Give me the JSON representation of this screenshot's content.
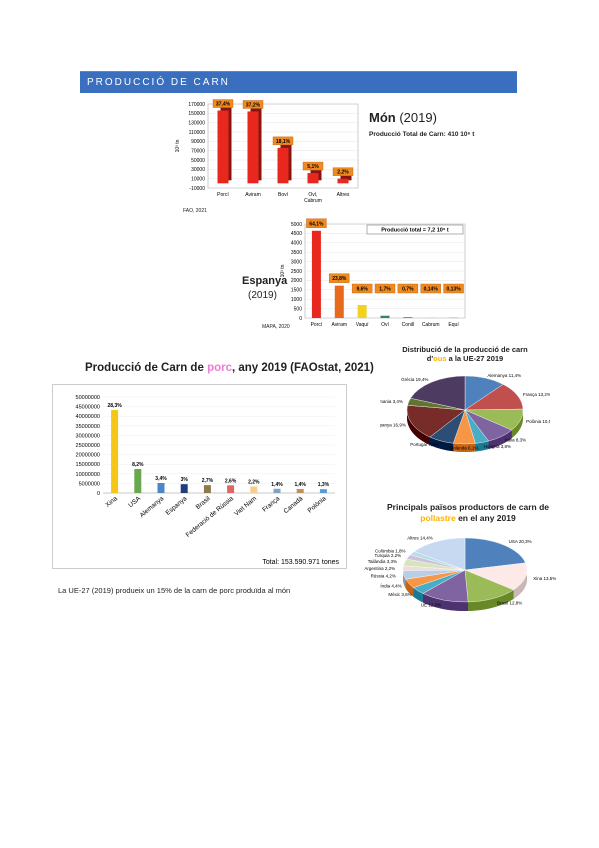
{
  "header": {
    "title": "PRODUCCIÓ DE CARN"
  },
  "world": {
    "title": "Món",
    "year": "(2019)",
    "total": "Producció Total de Carn: 410 10⁶ t",
    "source": "FAO, 2021",
    "ylabel": "10³ tn",
    "color": "#e8281e",
    "chart_data": {
      "type": "bar",
      "categories": [
        "Porcí",
        "Aviram",
        "Boví",
        "Oví, Cabrum",
        "Altres"
      ],
      "values": [
        156000,
        154000,
        76000,
        22000,
        10000
      ],
      "labels": [
        "37,4%",
        "37,2%",
        "18,1%",
        "5,1%",
        "2,2%"
      ],
      "ylim": [
        -10000,
        170000
      ],
      "yticks": [
        "170000",
        "150000",
        "130000",
        "110000",
        "90000",
        "70000",
        "50000",
        "30000",
        "10000",
        "-10000"
      ]
    }
  },
  "spain": {
    "title": "Espanya",
    "year": "(2019)",
    "total": "Producció total = 7,2 10⁶ t",
    "source": "MAPA, 2020",
    "ylabel": "10³ tn",
    "chart_data": {
      "type": "bar",
      "categories": [
        "Porcí",
        "Aviram",
        "Vaquí",
        "Oví",
        "Conill",
        "Cabrum",
        "Equí"
      ],
      "values": [
        4640,
        1720,
        690,
        120,
        50,
        10,
        10
      ],
      "labels": [
        "64,1%",
        "23,8%",
        "9,6%",
        "1,7%",
        "0,7%",
        "0,14%",
        "0,13%"
      ],
      "colors": [
        "#e8281e",
        "#e86a1e",
        "#f2d21e",
        "#2e8b57",
        "#4aa3a0",
        "#8fb0c0",
        "#3a6ab0"
      ],
      "ylim": [
        0,
        5000
      ],
      "yticks": [
        "5000",
        "4500",
        "4000",
        "3500",
        "3000",
        "2500",
        "2000",
        "1500",
        "1000",
        "500",
        "0"
      ]
    }
  },
  "pork": {
    "title_prefix": "Producció de Carn de ",
    "title_highlight": "porc",
    "title_suffix": ", any 2019 (FAOstat, 2021)",
    "total": "Total: 153.590.971 tones",
    "note": "La UE-27 (2019) produeix un 15% de la carn de porc produïda al món",
    "chart_data": {
      "type": "bar",
      "categories": [
        "Xina",
        "USA",
        "Alemanya",
        "Espanya",
        "Brasil",
        "Federació de Rússia",
        "Viet Nam",
        "França",
        "Canadà",
        "Polònia"
      ],
      "values": [
        43200000,
        12500000,
        5200000,
        4600000,
        4100000,
        4000000,
        3400000,
        2200000,
        2100000,
        2000000
      ],
      "labels": [
        "28,3%",
        "8,2%",
        "3,4%",
        "3%",
        "2,7%",
        "2,6%",
        "2,2%",
        "1,4%",
        "1,4%",
        "1,3%"
      ],
      "colors": [
        "#f5c518",
        "#6aa84f",
        "#4a86c8",
        "#1f3f7a",
        "#8c7b4a",
        "#e06666",
        "#f6cf8a",
        "#7fa3c8",
        "#c09060",
        "#5b9bd5"
      ],
      "ylim": [
        0,
        50000000
      ],
      "yticks": [
        "50000000",
        "45000000",
        "40000000",
        "35000000",
        "30000000",
        "25000000",
        "20000000",
        "15000000",
        "10000000",
        "5000000",
        "0"
      ]
    }
  },
  "eggs": {
    "title1": "Distribució de la producció de carn",
    "title2_prefix": "d'",
    "title2_highlight": "ous",
    "title2_suffix": " a la UE-27 2019",
    "chart_data": {
      "type": "pie",
      "labels": [
        "Alemanya 11,4%",
        "França 13,2%",
        "Polònia 10,5%",
        "Itàlia 8,3%",
        "Hongria 3,8%",
        "Holanda 6,1%",
        "Portugal 7,1%",
        "Espanya 16,9%",
        "Romania 3,4%",
        "Grècia 19,4%"
      ],
      "values": [
        11.4,
        13.2,
        10.5,
        8.3,
        3.8,
        6.1,
        7.1,
        16.9,
        3.4,
        19.4
      ],
      "colors": [
        "#4f81bd",
        "#c0504d",
        "#9bbb59",
        "#8064a2",
        "#4bacc6",
        "#f79646",
        "#2c4d75",
        "#772c2a",
        "#5f7530",
        "#4d3b62"
      ]
    }
  },
  "poultry": {
    "title1": "Principals països productors de carn de",
    "title2_highlight": "pollastre",
    "title2_suffix": " en el any 2019",
    "chart_data": {
      "type": "pie",
      "labels": [
        "USA 20,3%",
        "Xina 13,5%",
        "Brasil 12,8%",
        "UE 12,0%",
        "Mèxic 3,6%",
        "Índia 4,4%",
        "Rússia 4,2%",
        "Argentina 2,2%",
        "Tailàndia 3,3%",
        "Turquia 2,2%",
        "Colòmbia 1,8%",
        "Altres 14,4%"
      ],
      "values": [
        20.3,
        13.5,
        12.8,
        12.0,
        3.6,
        4.4,
        4.2,
        2.2,
        3.3,
        2.2,
        1.8,
        14.4
      ],
      "colors": [
        "#4f81bd",
        "#fde9e7",
        "#9bbb59",
        "#8064a2",
        "#4bacc6",
        "#f79646",
        "#b9cde5",
        "#f2dcdb",
        "#d7e4bd",
        "#ccc1da",
        "#b7dee8",
        "#c6d9f1"
      ]
    }
  }
}
